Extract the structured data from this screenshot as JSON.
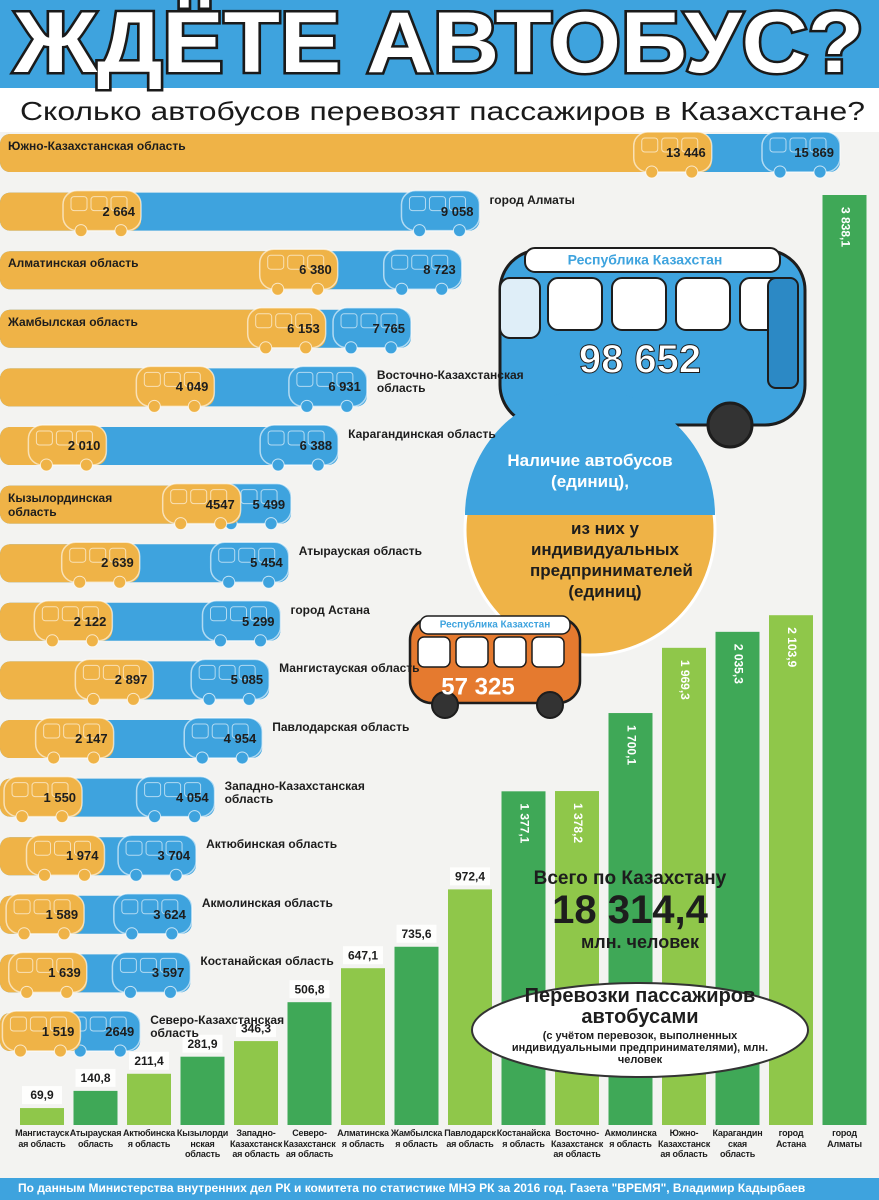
{
  "header": {
    "title": "ЖДЁТЕ АВТОБУС?",
    "subtitle": "Сколько автобусов перевозят пассажиров в Казахстане?"
  },
  "chart_data": [
    {
      "type": "bar",
      "orientation": "horizontal",
      "categories": [
        "Южно-Казахстанская область",
        "город Алматы",
        "Алматинская область",
        "Жамбылская область",
        "Восточно-Казахстанская область",
        "Карагандинская область",
        "Кызылординская область",
        "Атырауская область",
        "город Астана",
        "Мангистауская область",
        "Павлодарская область",
        "Западно-Казахстанская область",
        "Актюбинская область",
        "Акмолинская область",
        "Костанайская область",
        "Северо-Казахстанская область"
      ],
      "total_title": "Республика Казахстан",
      "series": [
        {
          "name": "Наличие автобусов (единиц),",
          "color": "#3ea3de",
          "values": [
            15869,
            9058,
            8723,
            7765,
            6931,
            6388,
            5499,
            5454,
            5299,
            5085,
            4954,
            4054,
            3704,
            3624,
            3597,
            2649
          ],
          "value_labels": [
            "15 869",
            "9 058",
            "8 723",
            "7 765",
            "6 931",
            "6 388",
            "5 499",
            "5 454",
            "5 299",
            "5 085",
            "4 954",
            "4 054",
            "3 704",
            "3 624",
            "3 597",
            "2649"
          ],
          "total": 98652,
          "total_label": "98 652"
        },
        {
          "name": "из них у индивидуальных предпринимателей (единиц)",
          "color": "#efb347",
          "values": [
            13446,
            2664,
            6380,
            6153,
            4049,
            2010,
            4547,
            2639,
            2122,
            2897,
            2147,
            1550,
            1974,
            1589,
            1639,
            1519
          ],
          "value_labels": [
            "13 446",
            "2 664",
            "6 380",
            "6 153",
            "4 049",
            "2 010",
            "4547",
            "2 639",
            "2 122",
            "2 897",
            "2 147",
            "1 550",
            "1 974",
            "1 589",
            "1 639",
            "1 519"
          ],
          "total": 57325,
          "total_label": "57 325"
        }
      ]
    },
    {
      "type": "bar",
      "title": "Перевозки пассажиров автобусами",
      "subtitle": "(с учётом перевозок, выполненных индивидуальными предпринимателями), млн. человек",
      "categories": [
        "Мангистауская область",
        "Атырауская область",
        "Актюбинская область",
        "Кызылординская область",
        "Западно-Казахстанская область",
        "Северо-Казахстанская область",
        "Алматинская область",
        "Жамбылская область",
        "Павлодарская область",
        "Костанайская область",
        "Восточно-Казахстанская область",
        "Акмолинская область",
        "Южно-Казахстанская область",
        "Карагандинская область",
        "город Астана",
        "город Алматы"
      ],
      "values": [
        69.9,
        140.8,
        211.4,
        281.9,
        346.3,
        506.8,
        647.1,
        735.6,
        972.4,
        1377.1,
        1378.2,
        1700.1,
        1969.3,
        2035.3,
        2103.9,
        3838.1
      ],
      "value_labels": [
        "69,9",
        "140,8",
        "211,4",
        "281,9",
        "346,3",
        "506,8",
        "647,1",
        "735,6",
        "972,4",
        "1 377,1",
        "1 378,2",
        "1 700,1",
        "1 969,3",
        "2 035,3",
        "2 103,9",
        "3 838,1"
      ],
      "colors": [
        "#8fc74a",
        "#3fa857"
      ],
      "total_title": "Всего по Казахстану",
      "total": 18314.4,
      "total_label": "18 314,4",
      "total_unit": "млн. человек"
    }
  ],
  "footer": "По данным Министерства внутренних дел РК и комитета по статистике МНЭ РК за 2016 год. Газета \"ВРЕМЯ\", Владимир Кадырбаев"
}
